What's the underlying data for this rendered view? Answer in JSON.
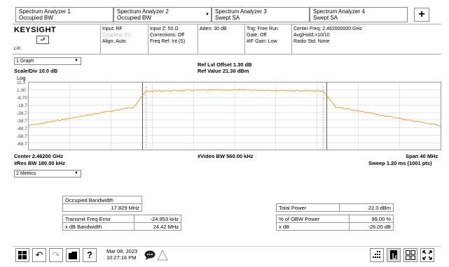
{
  "tabs": [
    {
      "line1": "Spectrum Analyzer 1",
      "line2": "Occupied BW",
      "arrow": ""
    },
    {
      "line1": "Spectrum Analyzer 2",
      "line2": "Occupied BW",
      "arrow": "▼"
    },
    {
      "line1": "Spectrum Analyzer 3",
      "line2": "Swept SA",
      "arrow": ""
    },
    {
      "line1": "Spectrum Analyzer 4",
      "line2": "Swept SA",
      "arrow": ""
    }
  ],
  "add_tab_label": "+",
  "logo": "KEYSIGHT",
  "lxi": "LXI",
  "info": {
    "col1": [
      "Input: RF",
      "Coupling: DC",
      "Align: Auto"
    ],
    "col2": [
      "Input Z: 50 Ω",
      "Corrections: Off",
      "Freq Ref: Int (S)"
    ],
    "col3": [
      "Atten: 30 dB"
    ],
    "col4": [
      "Trig: Free Run",
      "Gate: Off",
      "#IF Gain: Low"
    ],
    "col5": [
      "Center Freq: 2.462000000 GHz",
      "Avg|Hold:>10/10",
      "Radio Std: None"
    ]
  },
  "graph": {
    "selector": "1 Graph",
    "ref_offset": "Ref Lvl Offset 1.30 dB",
    "ref_value": "Ref Value 21.30 dBm",
    "scale": "Scale/Div 10.0 dB",
    "log_label": "Log",
    "y_ticks": [
      "11.3",
      "1.30",
      "-8.70",
      "-18.7",
      "-28.7",
      "-38.7",
      "-48.7",
      "-58.7",
      "-68.7"
    ],
    "center": "Center 2.46200 GHz",
    "res_bw": "#Res BW 180.00 kHz",
    "video_bw": "#Video BW 560.00 kHz",
    "span": "Span 40 MHz",
    "sweep": "Sweep 1.20 ms (1001 pts)"
  },
  "metrics": {
    "selector": "2 Metrics",
    "occupied_bw_label": "Occupied Bandwidth",
    "occupied_bw_value": "17.829 MHz",
    "tx_freq_error_label": "Transmit Freq Error",
    "tx_freq_error_value": "-24.953 kHz",
    "xdb_bw_label": "x dB Bandwidth",
    "xdb_bw_value": "24.42 MHz",
    "total_power_label": "Total Power",
    "total_power_value": "22.0 dBm",
    "obw_power_label": "% of OBW Power",
    "obw_power_value": "99.00 %",
    "xdb_label": "x dB",
    "xdb_value": "-26.00 dB"
  },
  "toolbar": {
    "date": "Mar 08, 2023",
    "time": "10:27:16 PM"
  },
  "colors": {
    "trace": "#f0a030",
    "accent": "#f0a030"
  }
}
